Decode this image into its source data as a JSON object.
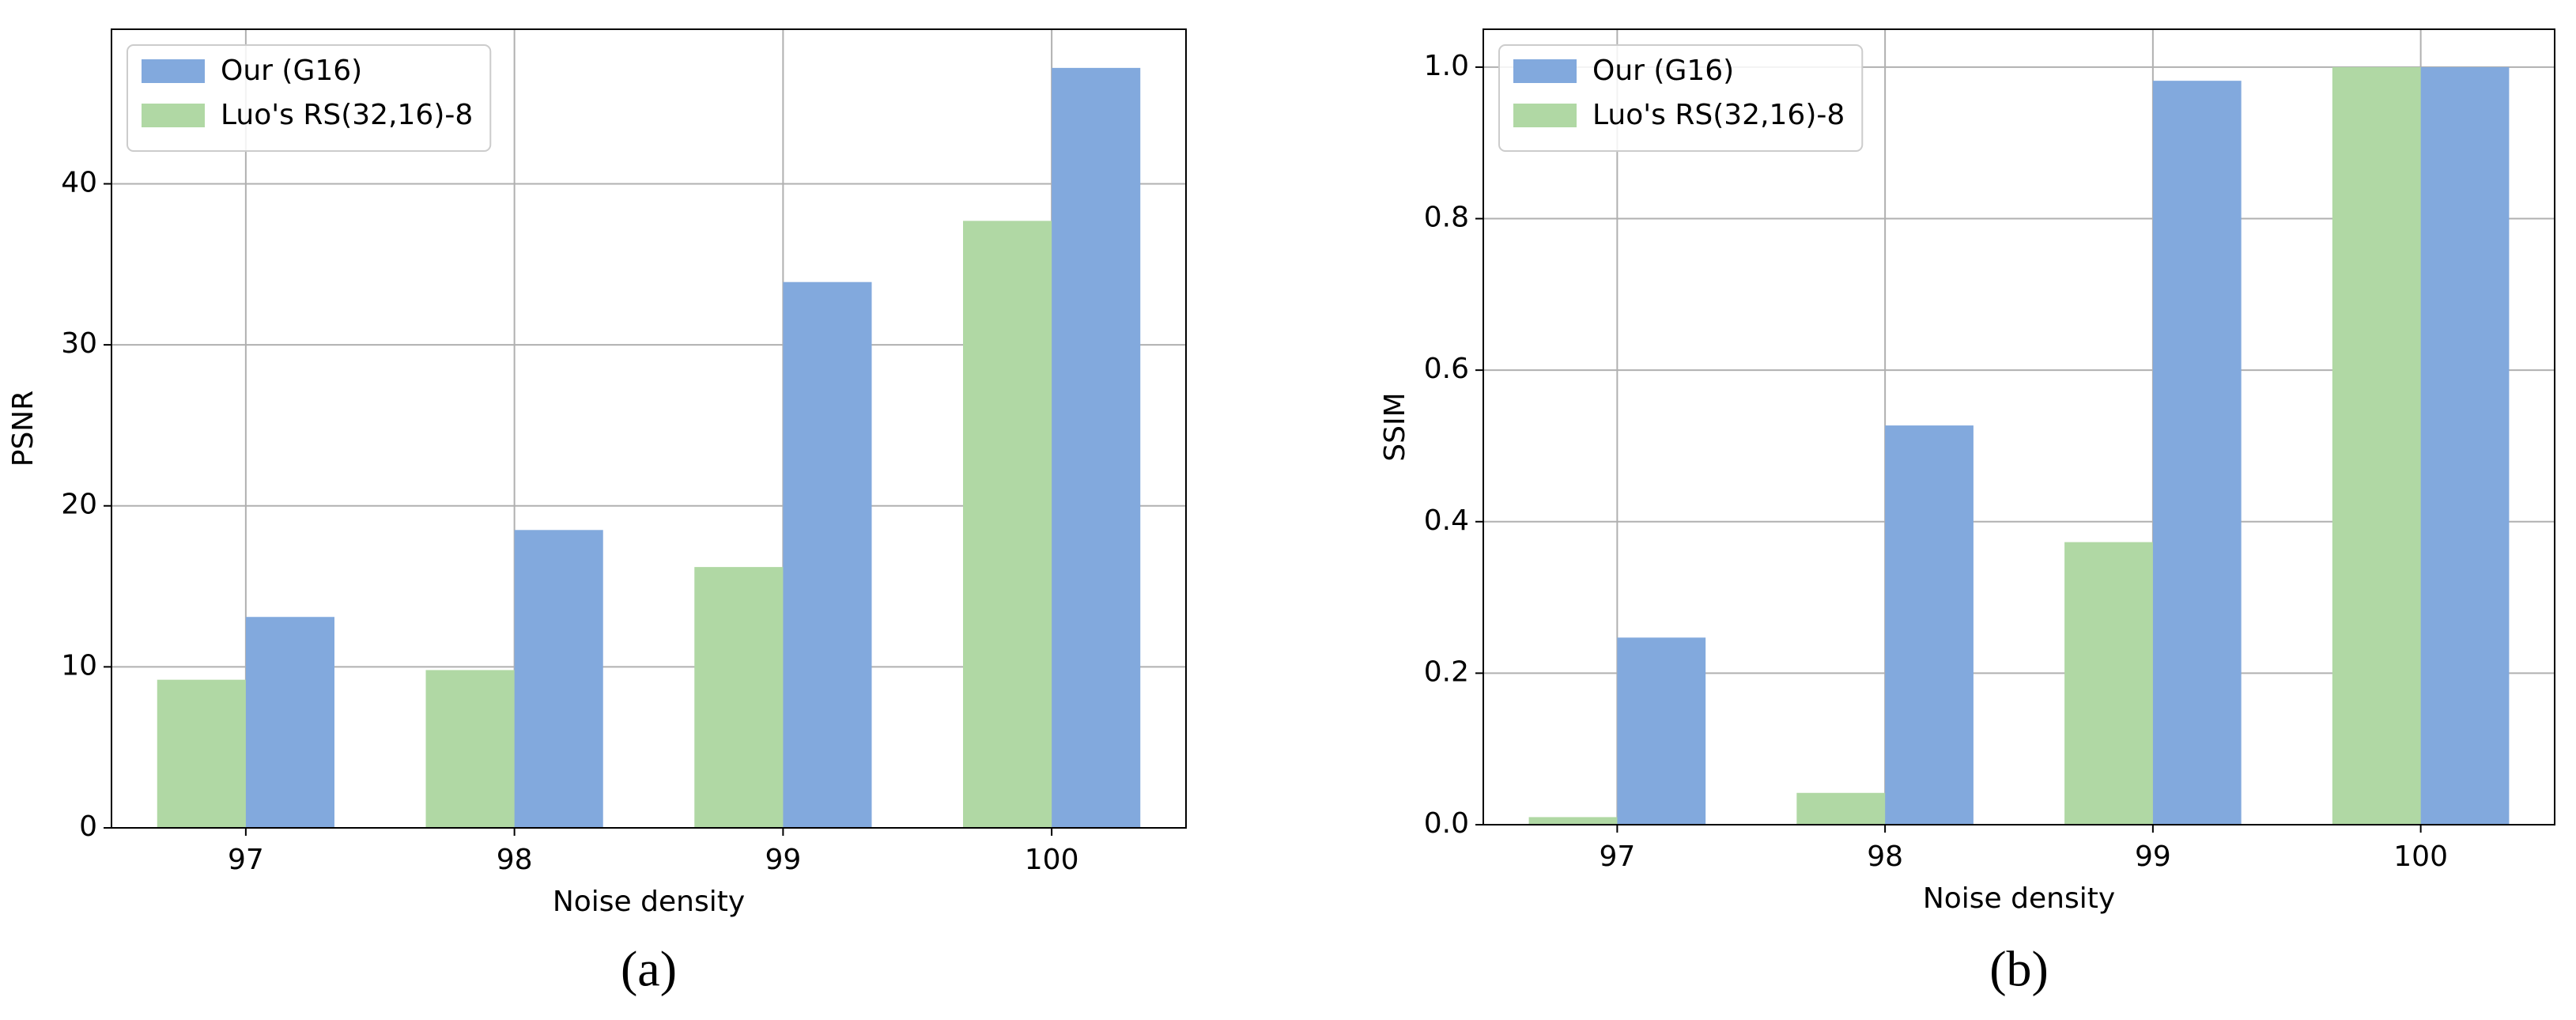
{
  "chart_data": [
    {
      "type": "bar",
      "caption": "(a)",
      "xlabel": "Noise density",
      "ylabel": "PSNR",
      "categories": [
        "97",
        "98",
        "99",
        "100"
      ],
      "series": [
        {
          "name": "Our (G16)",
          "color": "#82a9dd",
          "values": [
            13.1,
            18.5,
            33.9,
            47.2
          ]
        },
        {
          "name": "Luo's RS(32,16)-8",
          "color": "#b0d8a4",
          "values": [
            9.2,
            9.8,
            16.2,
            37.7
          ]
        }
      ],
      "ylim": [
        0,
        49.6
      ],
      "yticks": [
        0,
        10,
        20,
        30,
        40
      ],
      "grid": true,
      "legend": "upper left"
    },
    {
      "type": "bar",
      "caption": "(b)",
      "xlabel": "Noise density",
      "ylabel": "SSIM",
      "categories": [
        "97",
        "98",
        "99",
        "100"
      ],
      "series": [
        {
          "name": "Our (G16)",
          "color": "#82a9dd",
          "values": [
            0.247,
            0.527,
            0.982,
            1.0
          ]
        },
        {
          "name": "Luo's RS(32,16)-8",
          "color": "#b0d8a4",
          "values": [
            0.01,
            0.042,
            0.373,
            1.0
          ]
        }
      ],
      "ylim": [
        0,
        1.05
      ],
      "yticks": [
        {
          "value": 0,
          "label": "0.0"
        },
        0.2,
        0.4,
        0.6,
        0.8,
        {
          "value": 1,
          "label": "1.0"
        }
      ],
      "grid": true,
      "legend": "upper left"
    }
  ]
}
